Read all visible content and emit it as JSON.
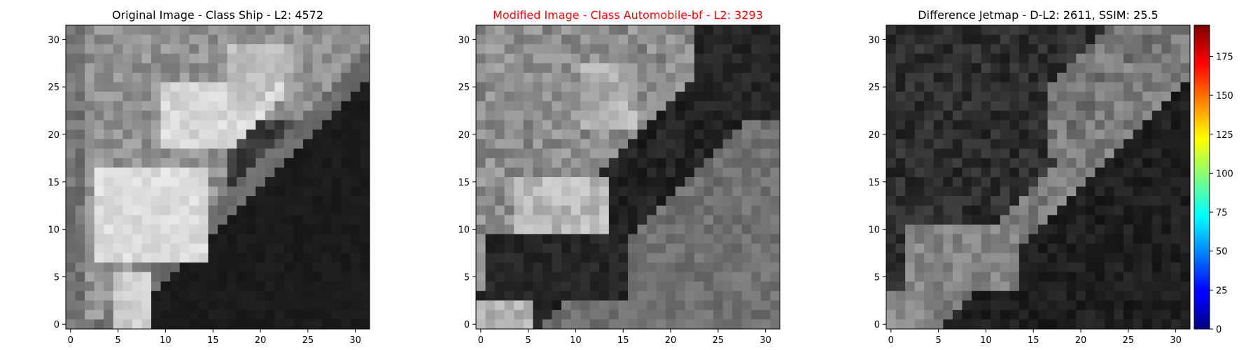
{
  "chart_data": [
    {
      "type": "heatmap",
      "title": "Original Image - Class Ship - L2: 4572",
      "title_color": "#000000",
      "xlim": [
        -0.5,
        31.5
      ],
      "ylim": [
        31.5,
        -0.5
      ],
      "xticks": [
        0,
        5,
        10,
        15,
        20,
        25,
        30
      ],
      "yticks": [
        0,
        5,
        10,
        15,
        20,
        25,
        30
      ],
      "colormap": "gray"
    },
    {
      "type": "heatmap",
      "title": "Modified Image - Class Automobile-bf - L2: 3293",
      "title_color": "#ff0000",
      "xlim": [
        -0.5,
        31.5
      ],
      "ylim": [
        31.5,
        -0.5
      ],
      "xticks": [
        0,
        5,
        10,
        15,
        20,
        25,
        30
      ],
      "yticks": [
        0,
        5,
        10,
        15,
        20,
        25,
        30
      ],
      "colormap": "gray"
    },
    {
      "type": "heatmap",
      "title": "Difference Jetmap - D-L2: 2611, SSIM: 25.5",
      "title_color": "#000000",
      "xlim": [
        -0.5,
        31.5
      ],
      "ylim": [
        31.5,
        -0.5
      ],
      "xticks": [
        0,
        5,
        10,
        15,
        20,
        25,
        30
      ],
      "yticks": [
        0,
        5,
        10,
        15,
        20,
        25,
        30
      ],
      "colormap": "gray",
      "colorbar": {
        "colormap": "jet",
        "range": [
          0,
          195
        ],
        "ticks": [
          0,
          25,
          50,
          75,
          100,
          125,
          150,
          175
        ]
      }
    }
  ]
}
